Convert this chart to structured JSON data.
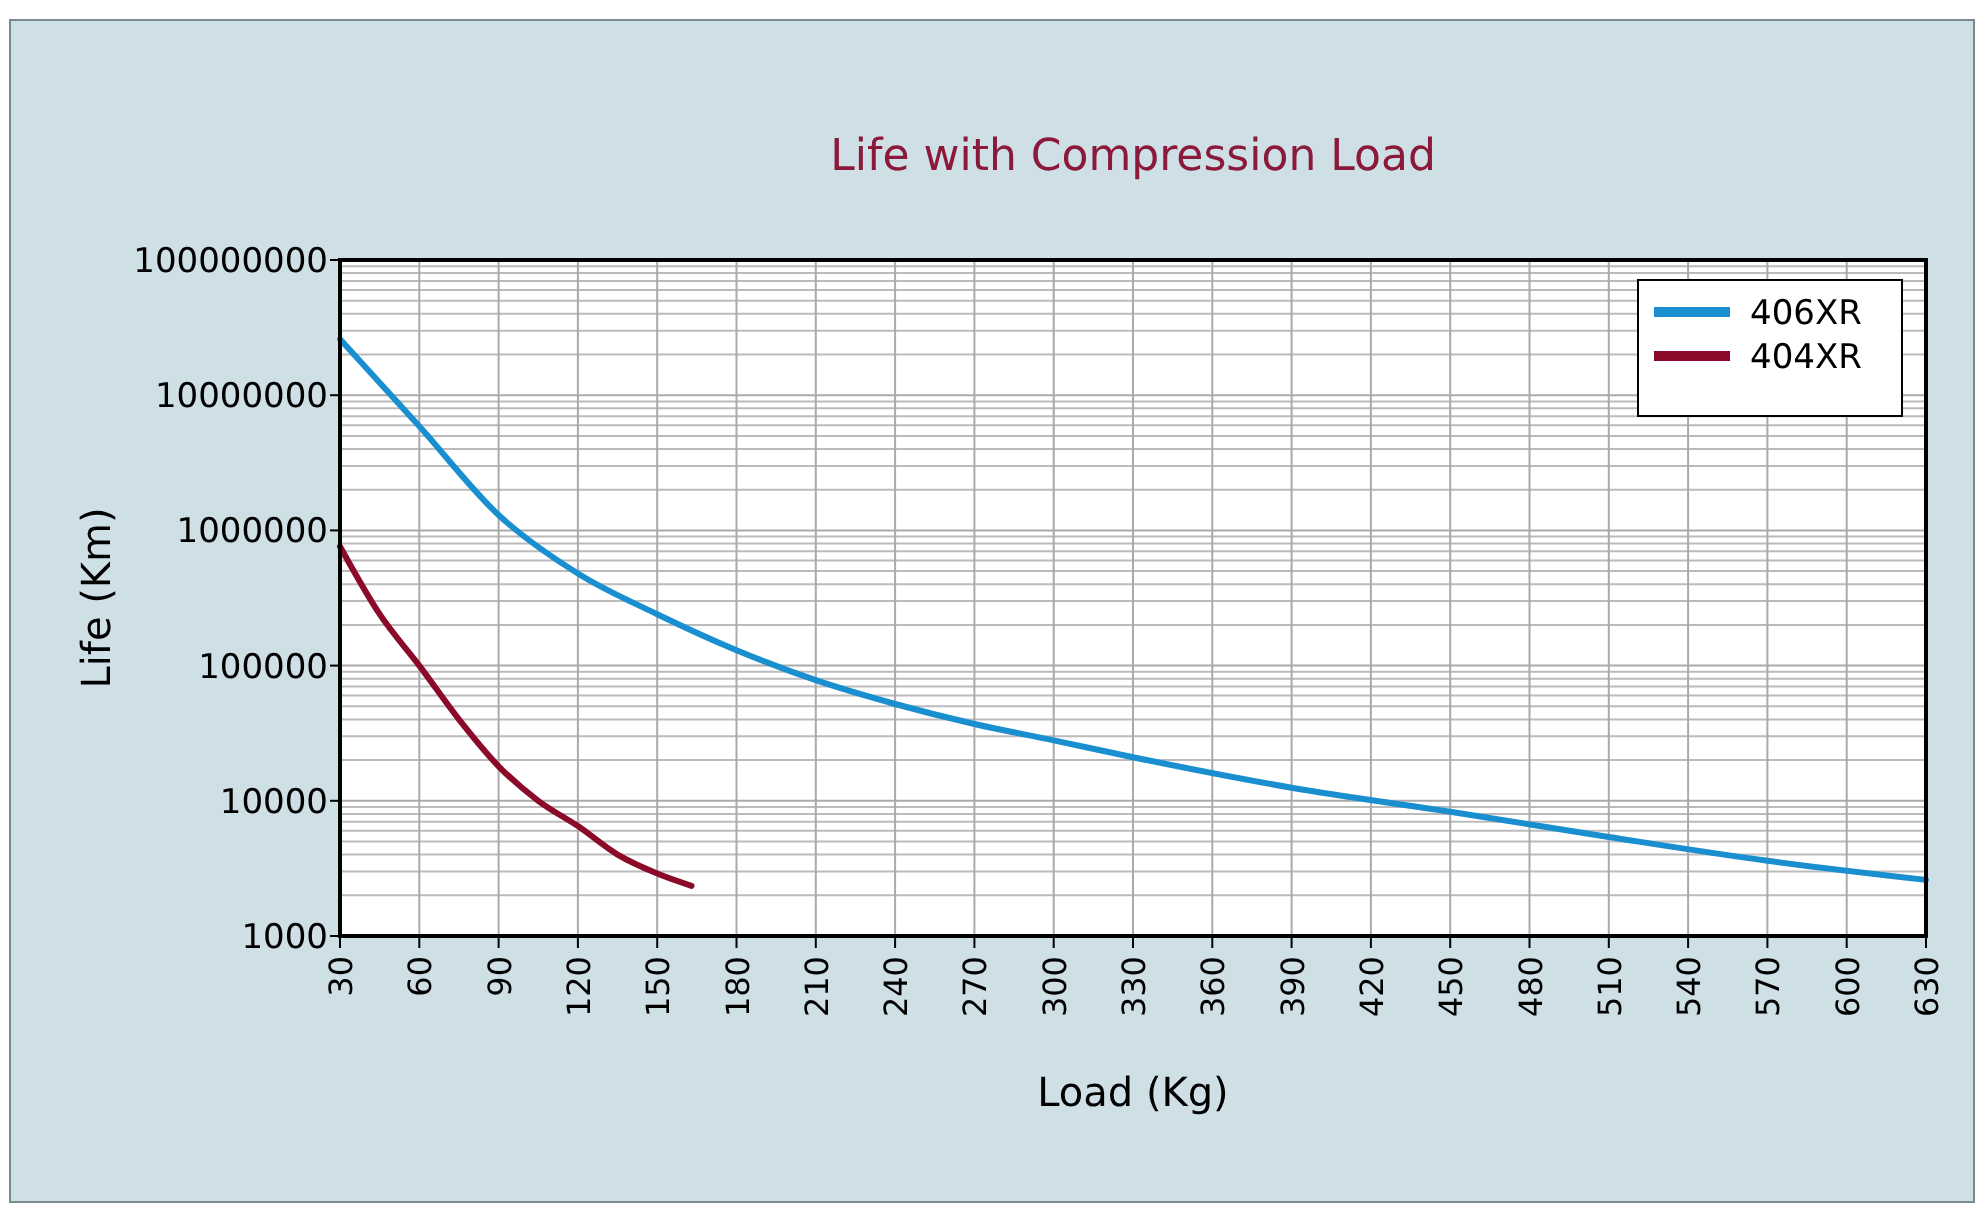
{
  "chart_data": {
    "type": "line",
    "title": "Life with Compression Load",
    "xlabel": "Load (Kg)",
    "ylabel": "Life (Km)",
    "log": "y",
    "grid": true,
    "legend": "top right",
    "xlim": [
      30,
      630
    ],
    "xticks": [
      30,
      60,
      90,
      120,
      150,
      180,
      210,
      240,
      270,
      300,
      330,
      360,
      390,
      420,
      450,
      480,
      510,
      540,
      570,
      600,
      630
    ],
    "ylim": [
      1000,
      100000000
    ],
    "yticks": [
      1000,
      10000,
      100000,
      1000000,
      10000000,
      100000000
    ],
    "series": [
      {
        "name": "406XR",
        "color": "#1a8fd0",
        "x": [
          30,
          60,
          90,
          120,
          150,
          180,
          210,
          240,
          270,
          300,
          330,
          390,
          450,
          510,
          570,
          630
        ],
        "values": [
          26000000,
          5900000,
          1300000,
          480000,
          240000,
          130000,
          78000,
          52000,
          37000,
          28000,
          21000,
          12500,
          8300,
          5400,
          3600,
          2600
        ]
      },
      {
        "name": "404XR",
        "color": "#8b0a2a",
        "x": [
          30,
          45,
          60,
          75,
          90,
          105,
          120,
          135,
          150,
          163
        ],
        "values": [
          760000,
          240000,
          100000,
          40000,
          18000,
          10000,
          6500,
          4000,
          2900,
          2350
        ]
      }
    ]
  }
}
